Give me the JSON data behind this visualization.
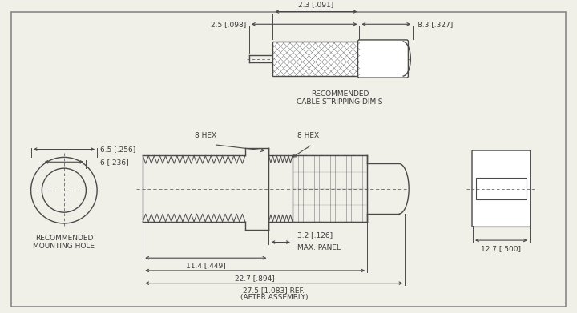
{
  "bg_color": "#f0efe8",
  "line_color": "#4a4a4a",
  "text_color": "#3a3a3a",
  "fig_width": 7.2,
  "fig_height": 3.91,
  "dpi": 100,
  "annotations": {
    "hex_left": "8 HEX",
    "hex_right": "8 HEX",
    "dim_114": "11.4 [.449]",
    "dim_227": "22.7 [.894]",
    "dim_275": "27.5 [1.083] REF.",
    "dim_275b": "(AFTER ASSEMBLY)",
    "dim_25": "2.5 [.098]",
    "dim_23": "2.3 [.091]",
    "dim_83": "8.3 [.327]",
    "dim_65": "6.5 [.256]",
    "dim_6": "6 [.236]",
    "dim_127": "12.7 [.500]",
    "dim_32": "3.2 [.126]",
    "max_panel": "MAX. PANEL",
    "rec_cable": "RECOMMENDED",
    "cable_dim": "CABLE STRIPPING DIM'S",
    "rec_mount": "RECOMMENDED",
    "mount_hole": "MOUNTING HOLE"
  }
}
